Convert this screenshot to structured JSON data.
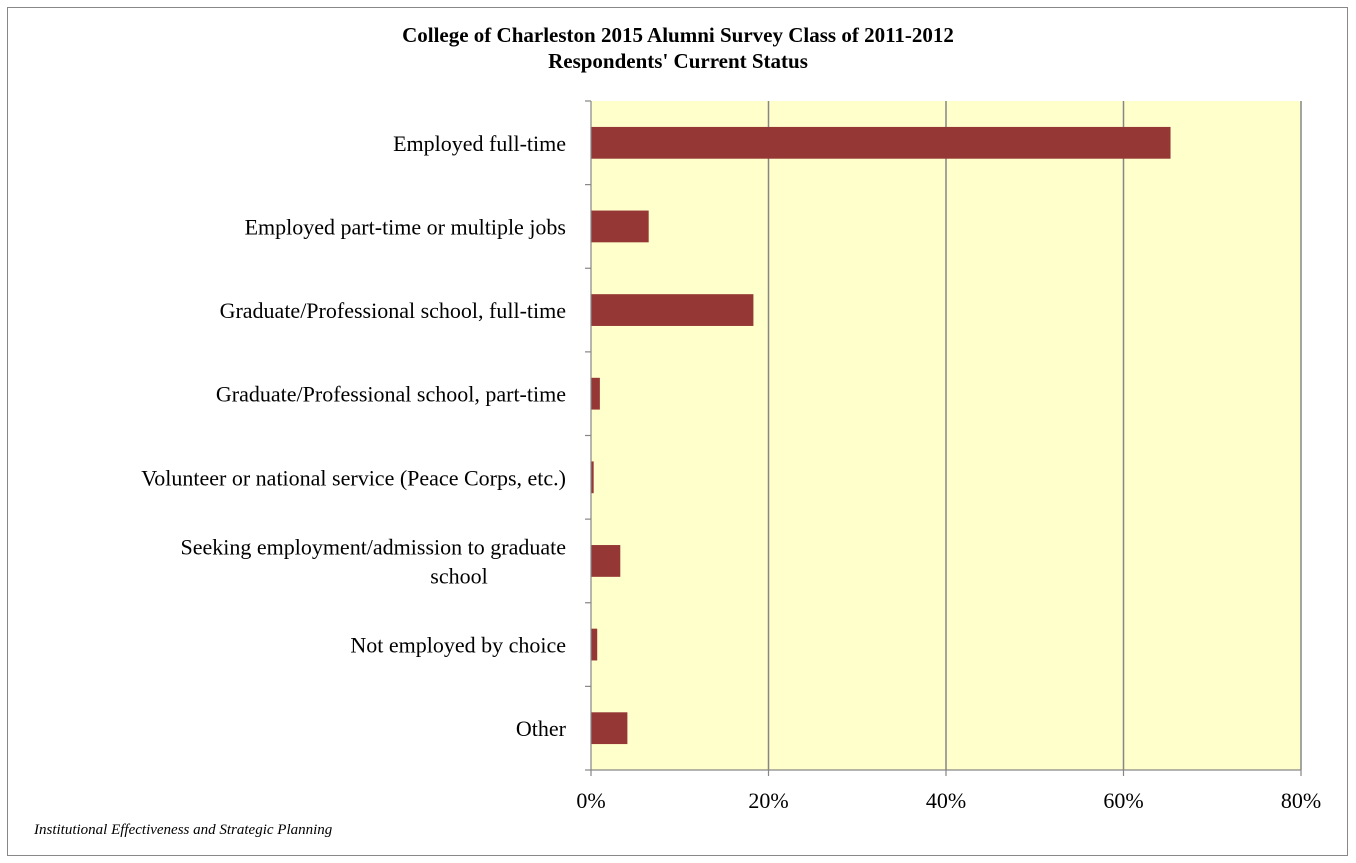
{
  "chart_data": {
    "type": "bar",
    "orientation": "horizontal",
    "title_lines": [
      "College of Charleston 2015 Alumni Survey Class of 2011-2012",
      "Respondents' Current Status"
    ],
    "categories": [
      [
        "Employed full-time"
      ],
      [
        "Employed part-time or multiple jobs"
      ],
      [
        "Graduate/Professional school, full-time"
      ],
      [
        "Graduate/Professional school, part-time"
      ],
      [
        "Volunteer or national service (Peace Corps, etc.)"
      ],
      [
        "Seeking employment/admission to graduate",
        "school"
      ],
      [
        "Not employed by choice"
      ],
      [
        "Other"
      ]
    ],
    "values": [
      65.3,
      6.5,
      18.3,
      1.0,
      0.3,
      3.3,
      0.7,
      4.1
    ],
    "xlim": [
      0,
      80
    ],
    "x_ticks": [
      0,
      20,
      40,
      60,
      80
    ],
    "x_tick_labels": [
      "0%",
      "20%",
      "40%",
      "60%",
      "80%"
    ],
    "grid": "vertical",
    "legend": "none",
    "colors": {
      "bar": "#953735",
      "plot_background": "#FFFFCC",
      "grid": "#868686"
    }
  },
  "footer": "Institutional Effectiveness and Strategic Planning"
}
